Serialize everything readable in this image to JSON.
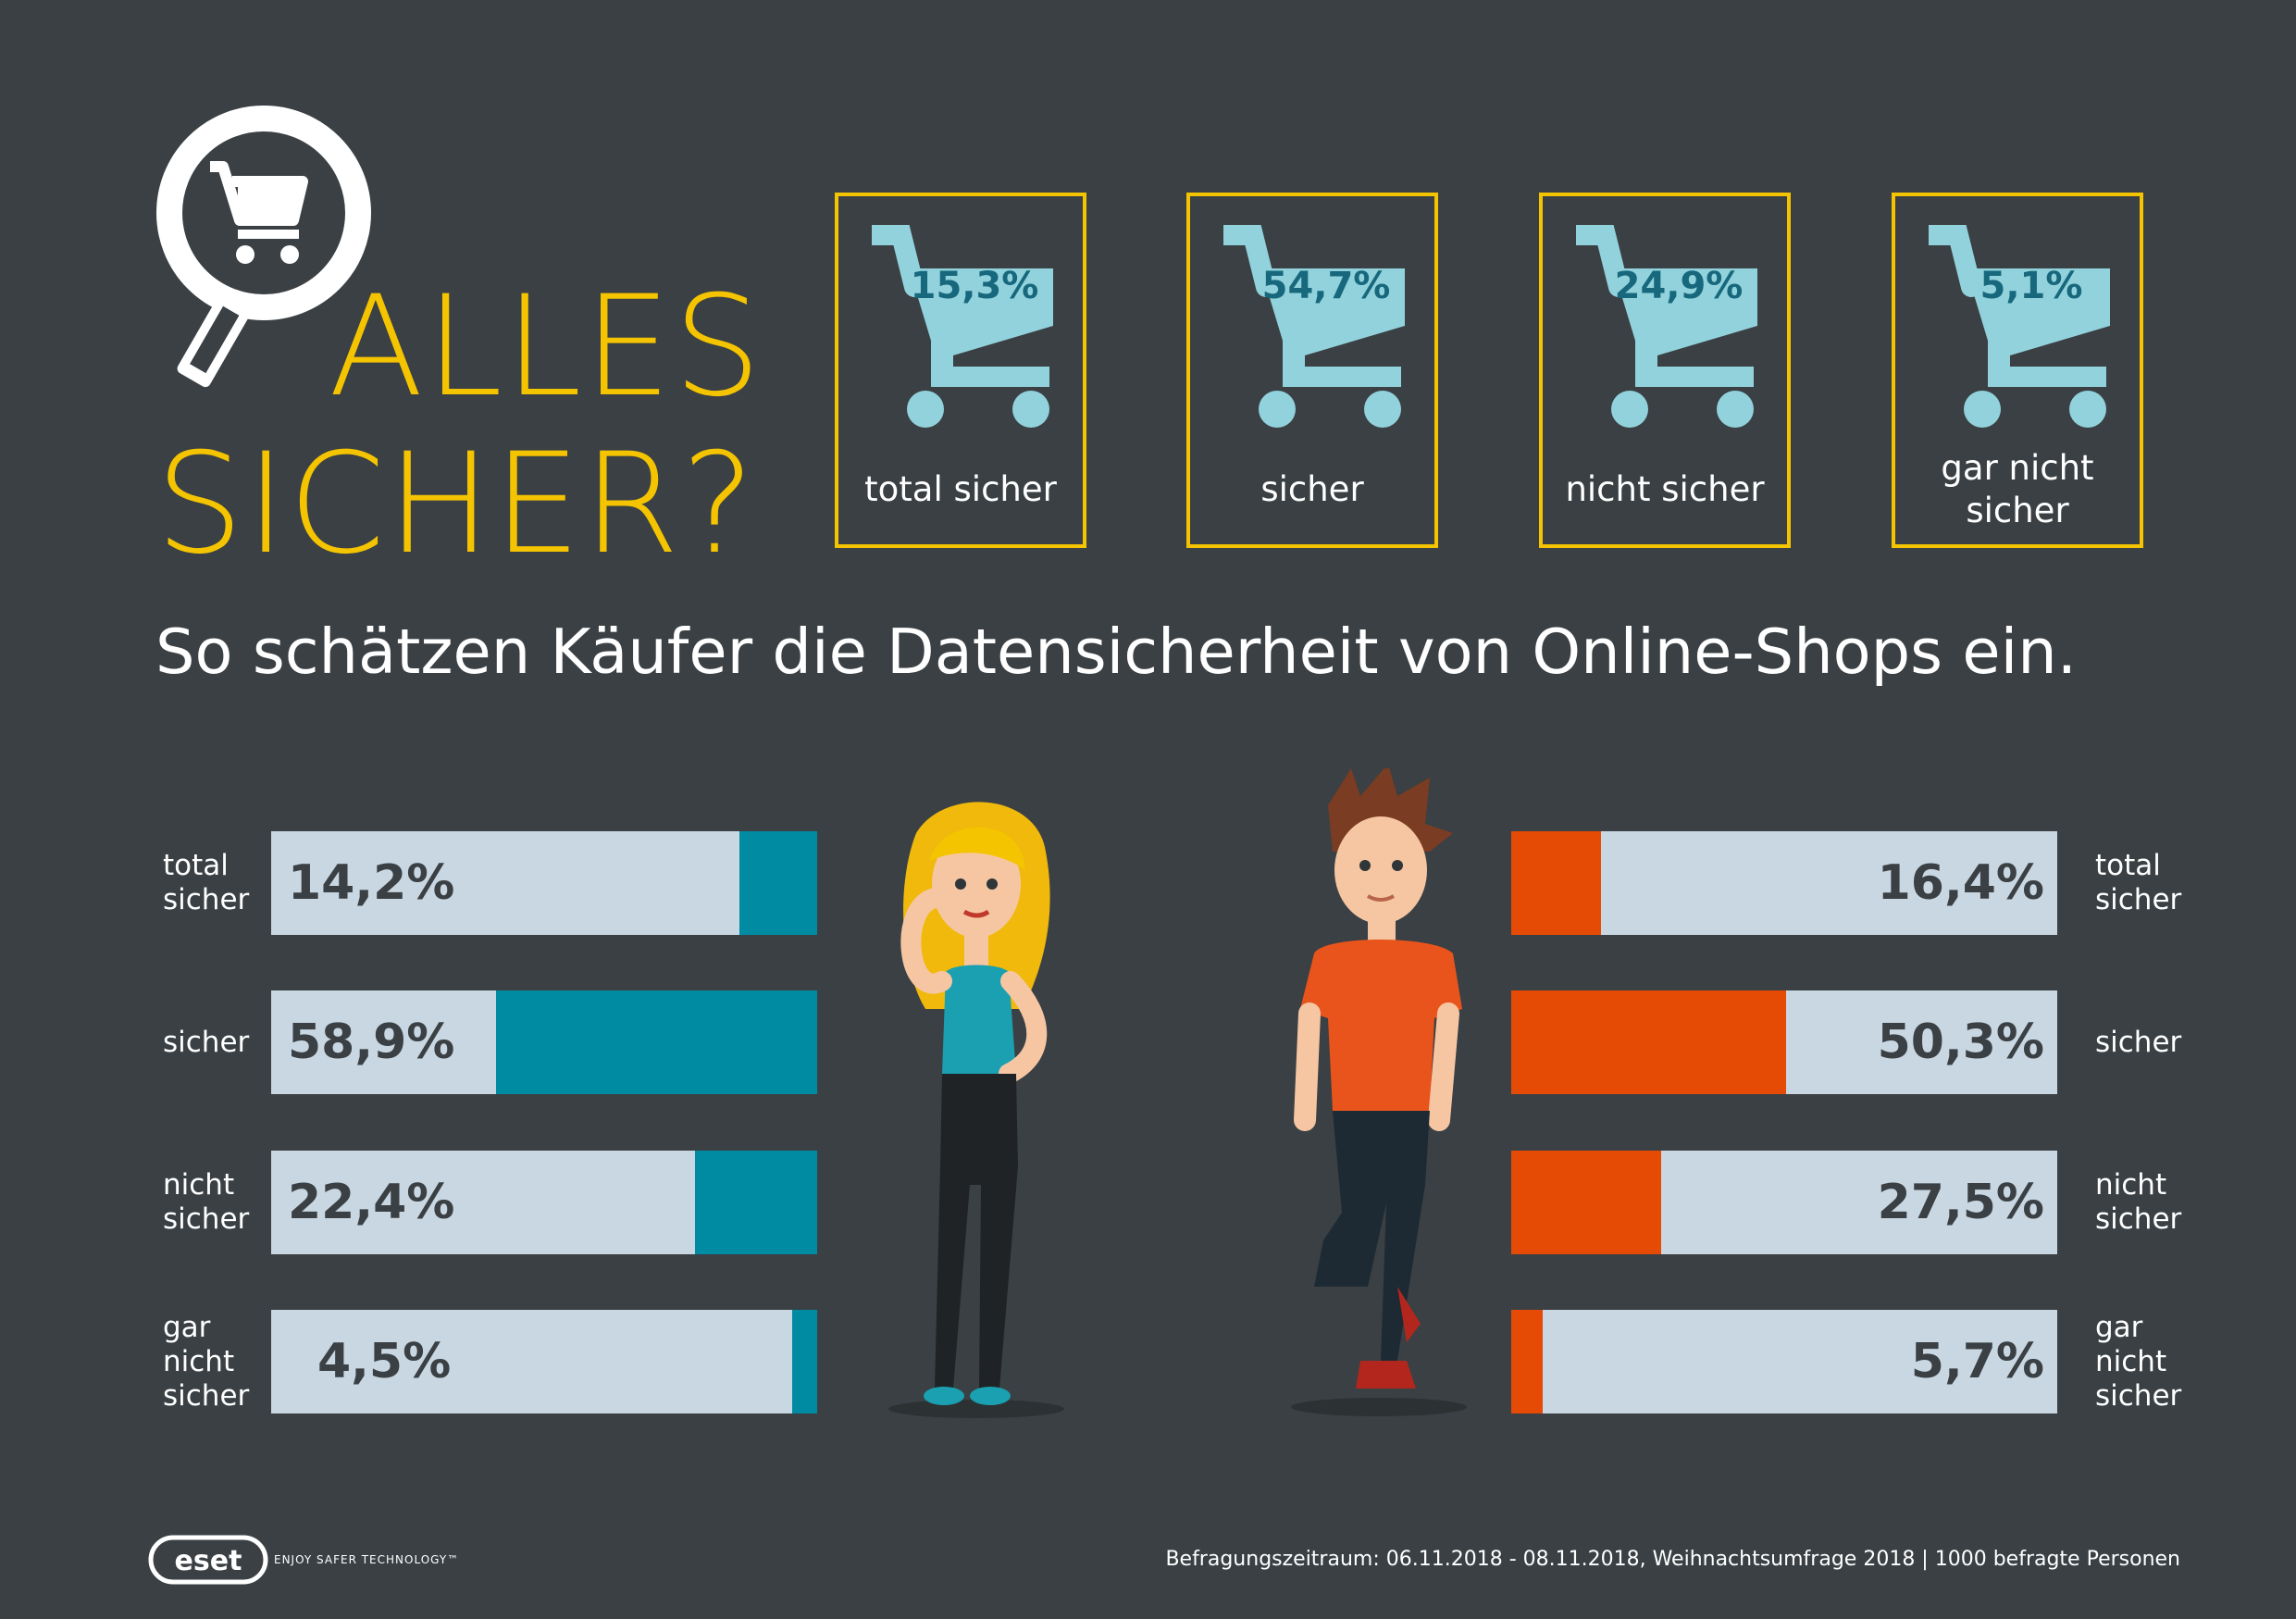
{
  "title": {
    "line1": "ALLES",
    "line2": "SICHER?"
  },
  "subtitle": "So schätzen Käufer die Datensicherheit von Online-Shops ein.",
  "overall": [
    {
      "value": "15,3%",
      "label": "total sicher"
    },
    {
      "value": "54,7%",
      "label": "sicher"
    },
    {
      "value": "24,9%",
      "label": "nicht sicher"
    },
    {
      "value": "5,1%",
      "label": "gar nicht sicher"
    }
  ],
  "row_labels": [
    "total sicher",
    "sicher",
    "nicht sicher",
    "gar nicht sicher"
  ],
  "colors": {
    "background": "#3a4044",
    "accent": "#f5c400",
    "cart": "#92d2dc",
    "cart_text": "#17687d",
    "women": "#008ba3",
    "men": "#e64b06",
    "track": "#c9d7e2"
  },
  "chart_data": [
    {
      "type": "bar",
      "categories": [
        "total sicher",
        "sicher",
        "nicht sicher",
        "gar nicht sicher"
      ],
      "values": [
        15.3,
        54.7,
        24.9,
        5.1
      ],
      "labels": [
        "15,3%",
        "54,7%",
        "24,9%",
        "5,1%"
      ],
      "unit": "%"
    },
    {
      "type": "bar",
      "categories": [
        "total sicher",
        "sicher",
        "nicht sicher",
        "gar nicht sicher"
      ],
      "values": [
        14.2,
        58.9,
        22.4,
        4.5
      ],
      "labels": [
        "14,2%",
        "58,9%",
        "22,4%",
        "4,5%"
      ],
      "unit": "%",
      "ylim": [
        0,
        100
      ]
    },
    {
      "type": "bar",
      "categories": [
        "total sicher",
        "sicher",
        "nicht sicher",
        "gar nicht sicher"
      ],
      "values": [
        16.4,
        50.3,
        27.5,
        5.7
      ],
      "labels": [
        "16,4%",
        "50,3%",
        "27,5%",
        "5,7%"
      ],
      "unit": "%",
      "ylim": [
        0,
        100
      ]
    }
  ],
  "footer": {
    "logo": "eset",
    "tagline": "ENJOY SAFER TECHNOLOGY™",
    "note": "Befragungszeitraum: 06.11.2018 - 08.11.2018, Weihnachtsumfrage 2018  |  1000 befragte Personen"
  }
}
